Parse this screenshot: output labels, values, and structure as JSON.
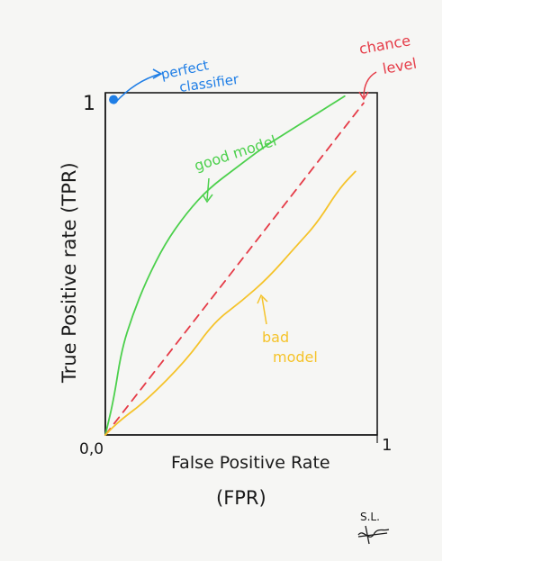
{
  "chart_data": {
    "type": "line",
    "title": "",
    "xlabel": "False Positive Rate",
    "xlabel_sub": "(FPR)",
    "ylabel": "True Positive rate (TPR)",
    "xlim": [
      0,
      1
    ],
    "ylim": [
      0,
      1
    ],
    "origin_label": "0,0",
    "x_max_label": "1",
    "y_max_label": "1",
    "grid": false,
    "series": [
      {
        "name": "good model",
        "color": "#4cd04c",
        "x": [
          0.0,
          0.03,
          0.06,
          0.1,
          0.15,
          0.22,
          0.3,
          0.38,
          0.48,
          0.58,
          0.68,
          0.78,
          0.88
        ],
        "y": [
          0.0,
          0.1,
          0.25,
          0.35,
          0.45,
          0.56,
          0.65,
          0.72,
          0.78,
          0.84,
          0.89,
          0.94,
          0.99
        ]
      },
      {
        "name": "chance level",
        "color": "#e53b47",
        "dashed": true,
        "x": [
          0.0,
          0.95
        ],
        "y": [
          0.0,
          0.97
        ]
      },
      {
        "name": "bad model",
        "color": "#f5c32a",
        "x": [
          0.0,
          0.05,
          0.15,
          0.3,
          0.4,
          0.5,
          0.6,
          0.7,
          0.78,
          0.86,
          0.92
        ],
        "y": [
          0.0,
          0.04,
          0.1,
          0.22,
          0.33,
          0.39,
          0.46,
          0.55,
          0.62,
          0.72,
          0.77
        ]
      }
    ],
    "points": [
      {
        "name": "perfect classifier",
        "x": 0.03,
        "y": 0.98,
        "color": "#1f7ee6"
      }
    ],
    "annotations": {
      "perfect_line1": "perfect",
      "perfect_line2": "classifier",
      "chance_line1": "chance",
      "chance_line2": "level",
      "good": "good model",
      "bad_line1": "bad",
      "bad_line2": "model"
    },
    "signature": "S.L."
  }
}
